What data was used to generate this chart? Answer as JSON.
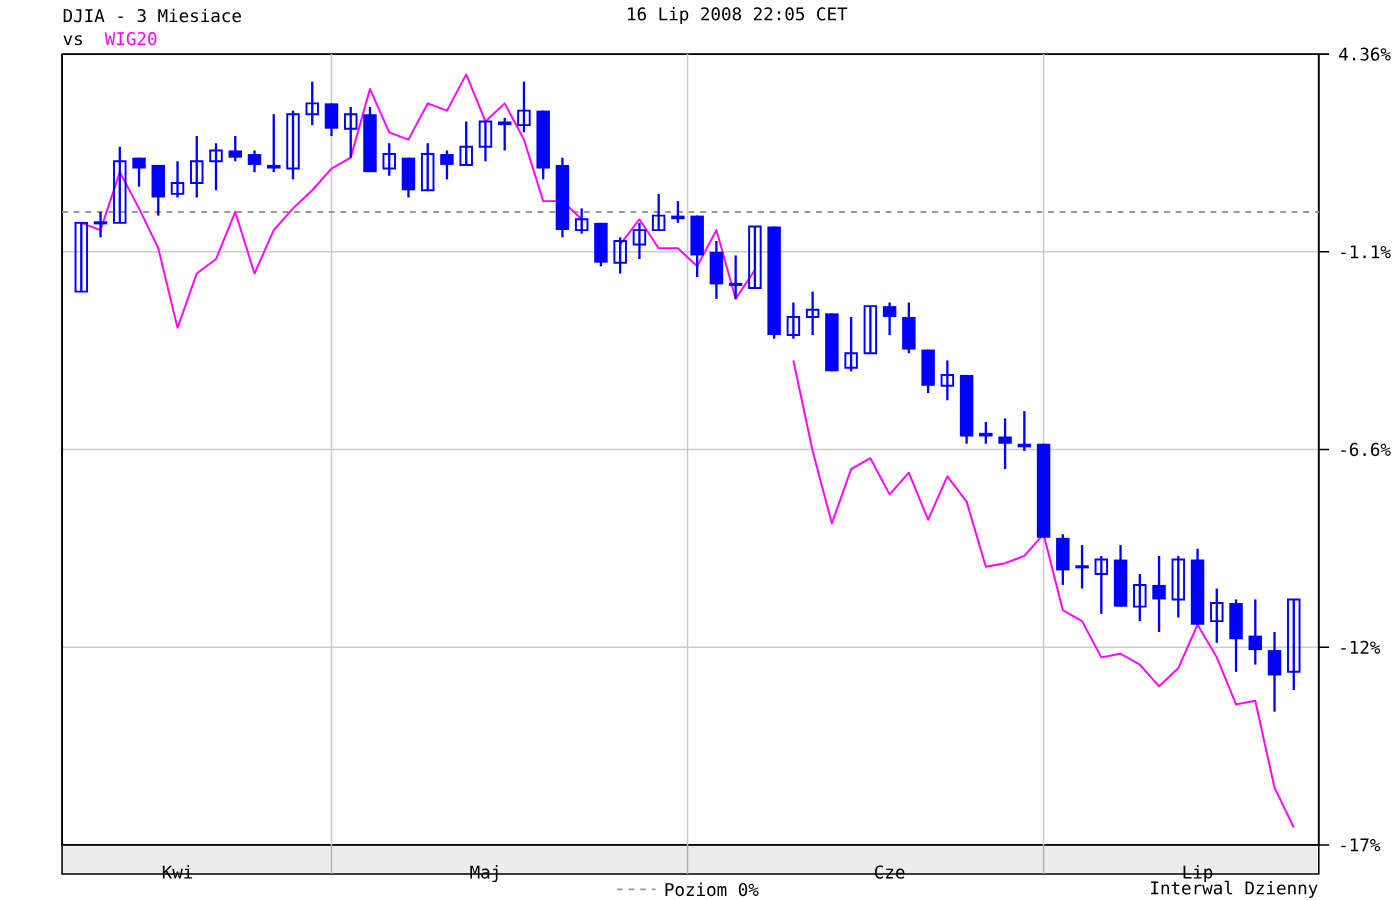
{
  "chart_data": {
    "type": "candlestick",
    "title": "DJIA - 3 Miesiace",
    "subtitle": "16 Lip 2008 22:05 CET",
    "annotations": [
      "vs",
      "Interwal Dzienny"
    ],
    "categories": [
      null,
      null,
      null,
      null,
      null,
      "Kwi",
      null,
      null,
      null,
      null,
      null,
      null,
      null,
      null,
      null,
      null,
      null,
      null,
      null,
      null,
      null,
      "Maj",
      null,
      null,
      null,
      null,
      null,
      null,
      null,
      null,
      null,
      null,
      null,
      null,
      null,
      null,
      null,
      null,
      null,
      null,
      null,
      null,
      "Cze",
      null,
      null,
      null,
      null,
      null,
      null,
      null,
      null,
      null,
      null,
      null,
      null,
      null,
      null,
      null,
      "Lip",
      null,
      null,
      null,
      null,
      null
    ],
    "legend": "bottom",
    "grid": true,
    "ylim": [
      -17.48,
      4.36
    ],
    "yticks": [
      {
        "value": -17.48,
        "label": "-17%"
      },
      {
        "value": -12.02,
        "label": "-12%"
      },
      {
        "value": -6.56,
        "label": "-6.6%"
      },
      {
        "value": -1.1,
        "label": "-1.1%"
      },
      {
        "value": 4.36,
        "label": "4.36%"
      }
    ],
    "ref_lines": [
      {
        "axis": "y",
        "value": 0,
        "label": "Poziom 0%",
        "color": "#999999",
        "line_style": "dashed"
      }
    ],
    "series": [
      {
        "color": "#0000ff",
        "ohlc": [
          [
            -2.2,
            -0.3,
            -2.2,
            -0.3
          ],
          [
            -0.3,
            0.0,
            -0.7,
            -0.3
          ],
          [
            -0.3,
            1.8,
            -0.3,
            1.4
          ],
          [
            1.5,
            1.5,
            0.7,
            1.2
          ],
          [
            1.3,
            1.3,
            -0.1,
            0.4
          ],
          [
            0.5,
            1.4,
            0.4,
            0.8
          ],
          [
            0.8,
            2.1,
            0.4,
            1.4
          ],
          [
            1.4,
            1.9,
            0.6,
            1.7
          ],
          [
            1.7,
            2.1,
            1.4,
            1.5
          ],
          [
            1.6,
            1.7,
            1.1,
            1.3
          ],
          [
            1.3,
            2.7,
            1.1,
            1.2
          ],
          [
            1.2,
            2.8,
            0.9,
            2.7
          ],
          [
            2.7,
            3.6,
            2.4,
            3.0
          ],
          [
            3.0,
            3.0,
            2.1,
            2.3
          ],
          [
            2.3,
            2.9,
            1.5,
            2.7
          ],
          [
            2.7,
            2.9,
            1.1,
            1.1
          ],
          [
            1.2,
            1.9,
            1.0,
            1.6
          ],
          [
            1.5,
            1.5,
            0.4,
            0.6
          ],
          [
            0.6,
            1.9,
            0.6,
            1.6
          ],
          [
            1.6,
            1.7,
            0.9,
            1.3
          ],
          [
            1.3,
            2.5,
            1.3,
            1.8
          ],
          [
            1.8,
            2.5,
            1.4,
            2.5
          ],
          [
            2.5,
            2.6,
            1.7,
            2.4
          ],
          [
            2.4,
            3.6,
            2.2,
            2.8
          ],
          [
            2.8,
            2.8,
            0.9,
            1.2
          ],
          [
            1.3,
            1.5,
            -0.7,
            -0.5
          ],
          [
            -0.5,
            0.1,
            -0.6,
            -0.2
          ],
          [
            -0.3,
            -0.3,
            -1.5,
            -1.4
          ],
          [
            -1.4,
            -0.7,
            -1.7,
            -0.8
          ],
          [
            -0.9,
            -0.3,
            -1.3,
            -0.5
          ],
          [
            -0.5,
            0.5,
            -0.5,
            -0.1
          ],
          [
            -0.1,
            0.3,
            -0.3,
            -0.2
          ],
          [
            -0.1,
            -0.1,
            -1.8,
            -1.2
          ],
          [
            -1.1,
            -0.8,
            -2.4,
            -2.0
          ],
          [
            -2.0,
            -1.2,
            -2.4,
            -2.0
          ],
          [
            -2.1,
            -0.4,
            -2.1,
            -0.4
          ],
          [
            -0.4,
            -0.4,
            -3.5,
            -3.4
          ],
          [
            -3.4,
            -2.5,
            -3.5,
            -2.9
          ],
          [
            -2.9,
            -2.2,
            -3.4,
            -2.7
          ],
          [
            -2.8,
            -2.8,
            -4.4,
            -4.4
          ],
          [
            -4.3,
            -2.9,
            -4.4,
            -3.9
          ],
          [
            -3.9,
            -2.6,
            -3.9,
            -2.6
          ],
          [
            -2.6,
            -2.5,
            -3.4,
            -2.9
          ],
          [
            -2.9,
            -2.5,
            -3.9,
            -3.8
          ],
          [
            -3.8,
            -3.8,
            -5.0,
            -4.8
          ],
          [
            -4.8,
            -4.1,
            -5.2,
            -4.5
          ],
          [
            -4.5,
            -4.5,
            -6.4,
            -6.2
          ],
          [
            -6.1,
            -5.8,
            -6.4,
            -6.2
          ],
          [
            -6.2,
            -5.7,
            -7.1,
            -6.4
          ],
          [
            -6.4,
            -5.5,
            -6.6,
            -6.5
          ],
          [
            -6.4,
            -6.4,
            -9.0,
            -9.0
          ],
          [
            -9.0,
            -8.9,
            -10.3,
            -9.9
          ],
          [
            -9.8,
            -9.2,
            -10.4,
            -9.8
          ],
          [
            -10.0,
            -9.5,
            -11.1,
            -9.6
          ],
          [
            -9.6,
            -9.2,
            -10.9,
            -10.9
          ],
          [
            -10.9,
            -10.0,
            -11.3,
            -10.3
          ],
          [
            -10.3,
            -9.5,
            -11.6,
            -10.7
          ],
          [
            -10.7,
            -9.5,
            -11.2,
            -9.6
          ],
          [
            -9.6,
            -9.3,
            -11.4,
            -11.4
          ],
          [
            -11.3,
            -10.4,
            -11.9,
            -10.8
          ],
          [
            -10.8,
            -10.7,
            -12.7,
            -11.8
          ],
          [
            -11.7,
            -10.7,
            -12.5,
            -12.1
          ],
          [
            -12.1,
            -11.6,
            -13.8,
            -12.8
          ],
          [
            -12.7,
            -10.7,
            -13.2,
            -10.7
          ]
        ]
      },
      {
        "name": "WIG20",
        "type": "line",
        "color": "#ff00ff",
        "values": [
          -0.3,
          -0.5,
          1.1,
          0.1,
          -1.0,
          -3.2,
          -1.7,
          -1.3,
          0.0,
          -1.7,
          -0.5,
          0.1,
          0.6,
          1.2,
          1.5,
          3.4,
          2.2,
          2.0,
          3.0,
          2.8,
          3.8,
          2.5,
          3.0,
          2.0,
          0.3,
          0.3,
          -0.2,
          null,
          -0.9,
          -0.2,
          -1.0,
          -1.0,
          -1.5,
          -0.5,
          -2.4,
          -1.6,
          null,
          -4.1,
          -6.6,
          -8.6,
          -7.1,
          -6.8,
          -7.8,
          -7.2,
          -8.5,
          -7.3,
          -8.0,
          -9.8,
          -9.7,
          -9.5,
          -8.9,
          -11.0,
          -11.3,
          -12.3,
          -12.2,
          -12.5,
          -13.1,
          -12.6,
          -11.4,
          -12.3,
          -13.6,
          -13.5,
          -15.9,
          -17.0
        ]
      }
    ]
  }
}
